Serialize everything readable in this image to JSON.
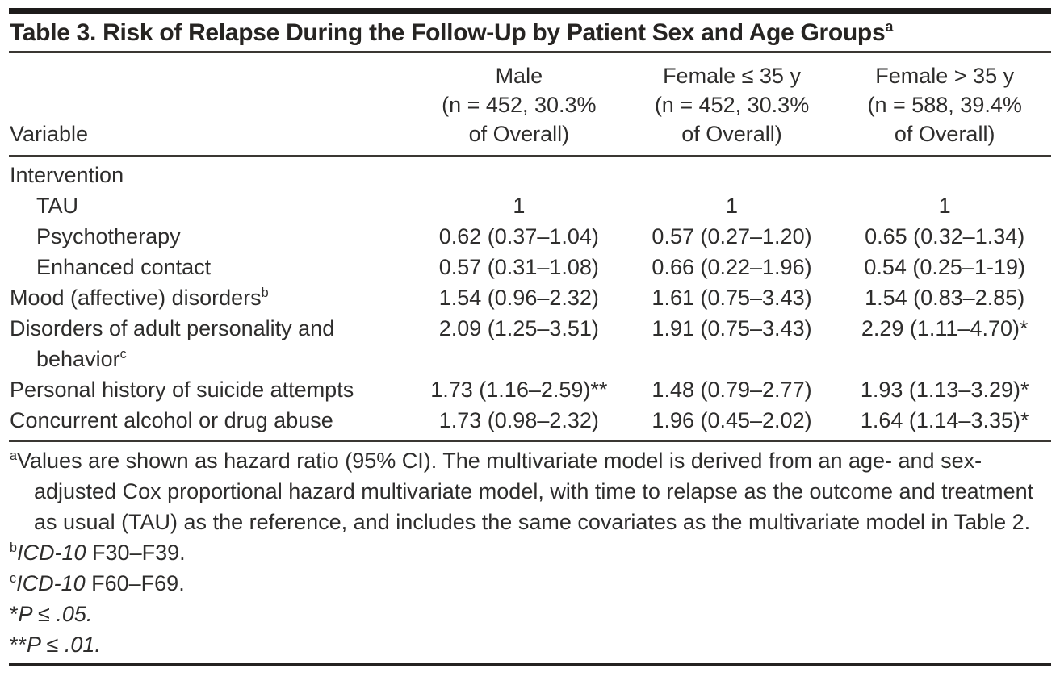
{
  "ink_color": "#2e2d2c",
  "rule_color": "#3a3733",
  "table": {
    "title": "Table 3. Risk of Relapse During the Follow-Up by Patient Sex and Age Groups",
    "title_footnote_marker": "a",
    "variable_header": "Variable",
    "columns": [
      {
        "line1": "Male",
        "line2": "(n = 452, 30.3%",
        "line3": "of Overall)"
      },
      {
        "line1": "Female ≤ 35 y",
        "line2": "(n = 452, 30.3%",
        "line3": "of Overall)"
      },
      {
        "line1": "Female > 35 y",
        "line2": "(n = 588, 39.4%",
        "line3": "of Overall)"
      }
    ],
    "rows": [
      {
        "label": "Intervention",
        "sup": "",
        "values": [
          "",
          "",
          ""
        ]
      },
      {
        "label": "TAU",
        "sup": "",
        "values": [
          "1",
          "1",
          "1"
        ]
      },
      {
        "label": "Psychotherapy",
        "sup": "",
        "values": [
          "0.62 (0.37–1.04)",
          "0.57 (0.27–1.20)",
          "0.65 (0.32–1.34)"
        ]
      },
      {
        "label": "Enhanced contact",
        "sup": "",
        "values": [
          "0.57 (0.31–1.08)",
          "0.66 (0.22–1.96)",
          "0.54 (0.25–1-19)"
        ]
      },
      {
        "label": "Mood (affective) disorders",
        "sup": "b",
        "values": [
          "1.54 (0.96–2.32)",
          "1.61 (0.75–3.43)",
          "1.54 (0.83–2.85)"
        ]
      },
      {
        "label": "Disorders of adult personality and",
        "label_line2": "behavior",
        "sup": "c",
        "values": [
          "2.09 (1.25–3.51)",
          "1.91 (0.75–3.43)",
          "2.29 (1.11–4.70)*"
        ]
      },
      {
        "label": "Personal history of suicide attempts",
        "sup": "",
        "values": [
          "1.73 (1.16–2.59)**",
          "1.48 (0.79–2.77)",
          "1.93 (1.13–3.29)*"
        ]
      },
      {
        "label": "Concurrent alcohol or drug abuse",
        "sup": "",
        "values": [
          "1.73 (0.98–2.32)",
          "1.96 (0.45–2.02)",
          "1.64 (1.14–3.35)*"
        ]
      }
    ]
  },
  "footnotes": {
    "a": {
      "sup": "a",
      "text": "Values are shown as hazard ratio (95% CI). The multivariate model is derived from an age- and sex-adjusted Cox proportional hazard multivariate model, with time to relapse as the outcome and treatment as usual (TAU) as the reference, and includes the same covariates as the multivariate model in Table 2."
    },
    "b": {
      "sup": "b",
      "italic": "ICD-10",
      "text": " F30–F39."
    },
    "c": {
      "sup": "c",
      "italic": "ICD-10",
      "text": " F60–F69."
    },
    "p05": {
      "marker": "*",
      "text": "P ≤ .05."
    },
    "p01": {
      "marker": "**",
      "text": "P ≤ .01."
    }
  }
}
